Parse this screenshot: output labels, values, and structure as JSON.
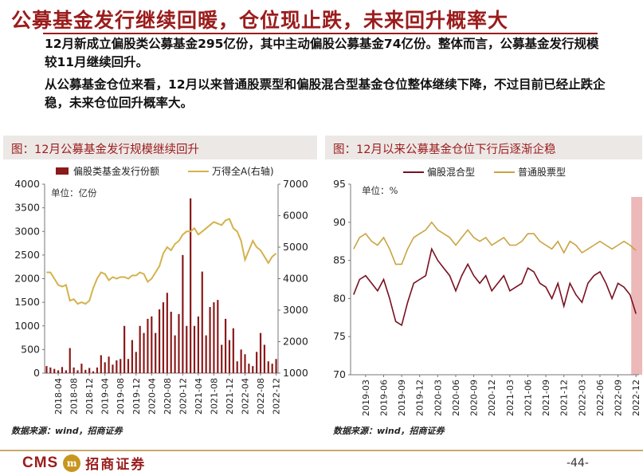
{
  "slide": {
    "title": "公募基金发行继续回暖，仓位现止跌，未来回升概率大",
    "paragraphs": [
      "12月新成立偏股类公募基金295亿份，其中主动偏股公募基金74亿份。整体而言，公募基金发行规模较11月继续回升。",
      "从公募基金仓位来看，12月以来普通股票型和偏股混合型基金仓位整体继续下降，不过目前已经止跌企稳，未来仓位回升概率大。"
    ],
    "page_number": "-44-",
    "logo_text": "CMS",
    "logo_mark": "m",
    "logo_cn": "招商证券"
  },
  "panels": {
    "left_title": "图：12月公募基金发行规模继续回升",
    "right_title": "图：12月以来公募基金仓位下行后逐渐企稳",
    "left_source": "数据来源：wind，招商证券",
    "right_source": "数据来源：wind，招商证券"
  },
  "colors": {
    "title_red": "#9b1c1c",
    "bar": "#8b1a1a",
    "wind_line": "#d4b24c",
    "mixed_line": "#7a1020",
    "stock_line": "#c9a441",
    "highlight": "#e6a0a0"
  },
  "chart_data": [
    {
      "type": "bar",
      "title": "12月公募基金发行规模继续回升",
      "unit_label": "单位：亿份",
      "x_tick_labels": [
        "2018-04",
        "2018-08",
        "2018-12",
        "2019-04",
        "2019-08",
        "2019-12",
        "2020-04",
        "2020-08",
        "2020-12",
        "2021-04",
        "2021-08",
        "2021-12",
        "2022-04",
        "2022-08",
        "2022-12"
      ],
      "categories": [
        "2018-01",
        "2018-02",
        "2018-03",
        "2018-04",
        "2018-05",
        "2018-06",
        "2018-07",
        "2018-08",
        "2018-09",
        "2018-10",
        "2018-11",
        "2018-12",
        "2019-01",
        "2019-02",
        "2019-03",
        "2019-04",
        "2019-05",
        "2019-06",
        "2019-07",
        "2019-08",
        "2019-09",
        "2019-10",
        "2019-11",
        "2019-12",
        "2020-01",
        "2020-02",
        "2020-03",
        "2020-04",
        "2020-05",
        "2020-06",
        "2020-07",
        "2020-08",
        "2020-09",
        "2020-10",
        "2020-11",
        "2020-12",
        "2021-01",
        "2021-02",
        "2021-03",
        "2021-04",
        "2021-05",
        "2021-06",
        "2021-07",
        "2021-08",
        "2021-09",
        "2021-10",
        "2021-11",
        "2021-12",
        "2022-01",
        "2022-02",
        "2022-03",
        "2022-04",
        "2022-05",
        "2022-06",
        "2022-07",
        "2022-08",
        "2022-09",
        "2022-10",
        "2022-11",
        "2022-12"
      ],
      "series": [
        {
          "name": "偏股类基金发行份额",
          "axis": "left",
          "kind": "bar",
          "values": [
            150,
            120,
            90,
            60,
            130,
            60,
            530,
            120,
            60,
            200,
            70,
            110,
            40,
            120,
            380,
            230,
            350,
            180,
            270,
            300,
            1000,
            300,
            700,
            450,
            1000,
            850,
            1150,
            1200,
            850,
            1350,
            1500,
            1700,
            1300,
            800,
            1250,
            2500,
            1000,
            3700,
            1000,
            1200,
            2150,
            800,
            1400,
            1500,
            1550,
            600,
            1150,
            700,
            950,
            250,
            500,
            400,
            200,
            150,
            450,
            850,
            600,
            250,
            200,
            300
          ]
        },
        {
          "name": "万得全A(右轴)",
          "axis": "right",
          "kind": "line",
          "values": [
            4200,
            4200,
            4000,
            3800,
            3750,
            3800,
            3300,
            3350,
            3200,
            3250,
            3200,
            3300,
            3700,
            4000,
            4200,
            4150,
            3950,
            4050,
            4000,
            4050,
            4050,
            4000,
            4100,
            4100,
            4200,
            4150,
            3900,
            4000,
            4200,
            4400,
            4800,
            5000,
            4900,
            5100,
            5200,
            5400,
            5500,
            5500,
            5600,
            5400,
            5500,
            5600,
            5700,
            5800,
            5750,
            5700,
            5850,
            5900,
            5600,
            5500,
            5200,
            4600,
            4900,
            5200,
            5000,
            4900,
            4700,
            4500,
            4700,
            4800
          ]
        }
      ],
      "ylim_left": [
        0,
        4000
      ],
      "ylim_right": [
        1000,
        7000
      ],
      "yticks_left": [
        0,
        500,
        1000,
        1500,
        2000,
        2500,
        3000,
        3500,
        4000
      ],
      "yticks_right": [
        1000,
        2000,
        3000,
        4000,
        5000,
        6000,
        7000
      ],
      "grid": false,
      "legend_position": "top"
    },
    {
      "type": "line",
      "title": "12月以来公募基金仓位下行后逐渐企稳",
      "unit_label": "单位：%",
      "x_tick_labels": [
        "2019-03",
        "2019-06",
        "2019-09",
        "2019-12",
        "2020-03",
        "2020-06",
        "2020-09",
        "2020-12",
        "2021-03",
        "2021-06",
        "2021-09",
        "2021-12",
        "2022-03",
        "2022-06",
        "2022-09",
        "2022-12"
      ],
      "x": [
        "2019-01",
        "2019-02",
        "2019-03",
        "2019-04",
        "2019-05",
        "2019-06",
        "2019-07",
        "2019-08",
        "2019-09",
        "2019-10",
        "2019-11",
        "2019-12",
        "2020-01",
        "2020-02",
        "2020-03",
        "2020-04",
        "2020-05",
        "2020-06",
        "2020-07",
        "2020-08",
        "2020-09",
        "2020-10",
        "2020-11",
        "2020-12",
        "2021-01",
        "2021-02",
        "2021-03",
        "2021-04",
        "2021-05",
        "2021-06",
        "2021-07",
        "2021-08",
        "2021-09",
        "2021-10",
        "2021-11",
        "2021-12",
        "2022-01",
        "2022-02",
        "2022-03",
        "2022-04",
        "2022-05",
        "2022-06",
        "2022-07",
        "2022-08",
        "2022-09",
        "2022-10",
        "2022-11",
        "2022-12"
      ],
      "series": [
        {
          "name": "偏股混合型",
          "values": [
            80.5,
            82.5,
            83,
            82,
            81,
            82.5,
            80,
            77,
            76.5,
            79.5,
            82,
            82.5,
            83,
            86.5,
            85,
            84,
            83,
            81,
            83,
            84.5,
            83,
            82,
            83,
            81,
            82,
            83,
            81,
            81.5,
            82,
            84,
            83.5,
            82,
            81.5,
            80,
            82,
            79,
            82,
            80.5,
            79.5,
            82,
            83,
            83.5,
            82,
            80,
            82,
            81.5,
            80.5,
            78
          ]
        },
        {
          "name": "普通股票型",
          "values": [
            86.5,
            88,
            88.5,
            87.5,
            87,
            88,
            86.5,
            84.5,
            84.5,
            86.5,
            88,
            88.5,
            89,
            90,
            89,
            88.5,
            88,
            87,
            88,
            89,
            88,
            87.5,
            88,
            87,
            87.5,
            88,
            87,
            87,
            87.5,
            88.5,
            88.5,
            87.5,
            87,
            86.5,
            87.5,
            86,
            87.5,
            87,
            86,
            86.5,
            87,
            87.5,
            87,
            86.5,
            87,
            87.5,
            87,
            86.3
          ]
        }
      ],
      "ylim": [
        70,
        95
      ],
      "yticks": [
        70,
        75,
        80,
        85,
        90,
        95
      ],
      "highlight_period": [
        "2022-12",
        "2022-12"
      ],
      "grid": false,
      "legend_position": "top"
    }
  ]
}
